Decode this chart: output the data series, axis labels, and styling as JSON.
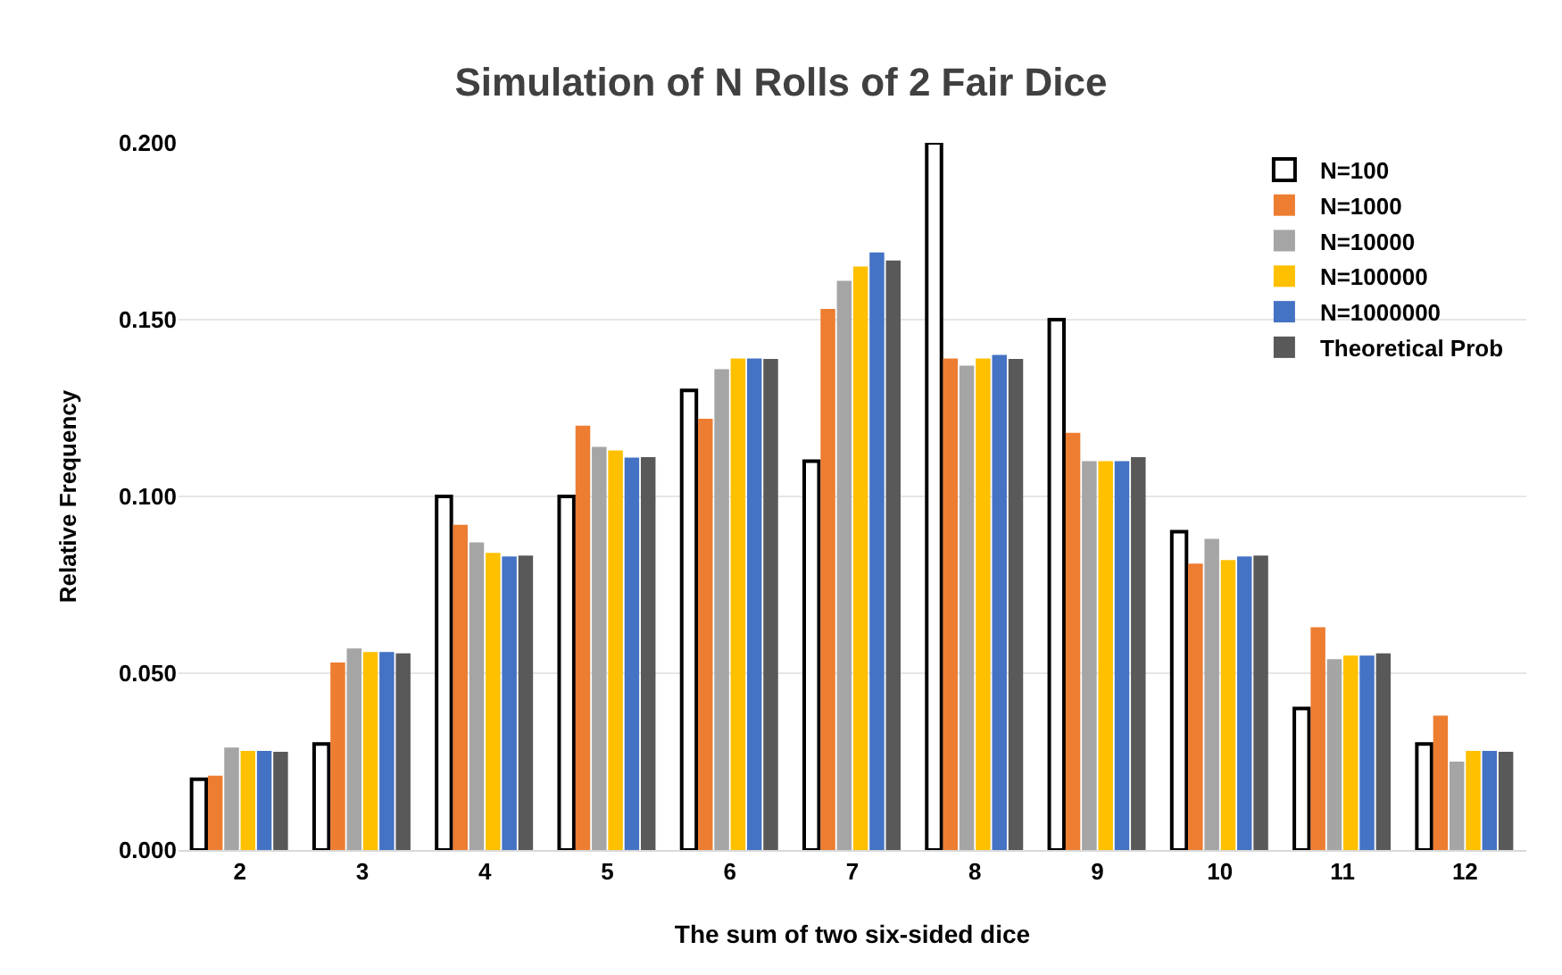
{
  "chart_data": {
    "type": "bar",
    "title": "Simulation of N Rolls of 2 Fair Dice",
    "xlabel": "The sum of two six-sided dice",
    "ylabel": "Relative Frequency",
    "categories": [
      "2",
      "3",
      "4",
      "5",
      "6",
      "7",
      "8",
      "9",
      "10",
      "11",
      "12"
    ],
    "series": [
      {
        "name": "N=100",
        "color": "#ffffff",
        "values": [
          0.02,
          0.03,
          0.1,
          0.1,
          0.13,
          0.11,
          0.2,
          0.15,
          0.09,
          0.04,
          0.03
        ]
      },
      {
        "name": "N=1000",
        "color": "#ed7d31",
        "values": [
          0.021,
          0.053,
          0.092,
          0.12,
          0.122,
          0.153,
          0.139,
          0.118,
          0.081,
          0.063,
          0.038
        ]
      },
      {
        "name": "N=10000",
        "color": "#a5a5a5",
        "values": [
          0.029,
          0.057,
          0.087,
          0.114,
          0.136,
          0.161,
          0.137,
          0.11,
          0.088,
          0.054,
          0.025
        ]
      },
      {
        "name": "N=100000",
        "color": "#ffc000",
        "values": [
          0.028,
          0.056,
          0.084,
          0.113,
          0.139,
          0.165,
          0.139,
          0.11,
          0.082,
          0.055,
          0.028
        ]
      },
      {
        "name": "N=1000000",
        "color": "#4472c4",
        "values": [
          0.028,
          0.056,
          0.083,
          0.111,
          0.139,
          0.169,
          0.14,
          0.11,
          0.083,
          0.055,
          0.028
        ]
      },
      {
        "name": "Theoretical Prob",
        "color": "#595959",
        "values": [
          0.0278,
          0.0556,
          0.0833,
          0.1111,
          0.1389,
          0.1667,
          0.1389,
          0.1111,
          0.0833,
          0.0556,
          0.0278
        ]
      }
    ],
    "ylim": [
      0,
      0.2
    ],
    "yticks": [
      {
        "value": 0,
        "label": "0.000"
      },
      {
        "value": 0.05,
        "label": "0.050"
      },
      {
        "value": 0.1,
        "label": "0.100"
      },
      {
        "value": 0.15,
        "label": "0.150"
      },
      {
        "value": 0.2,
        "label": "0.200"
      }
    ],
    "grid": "y",
    "legend": "top right"
  }
}
